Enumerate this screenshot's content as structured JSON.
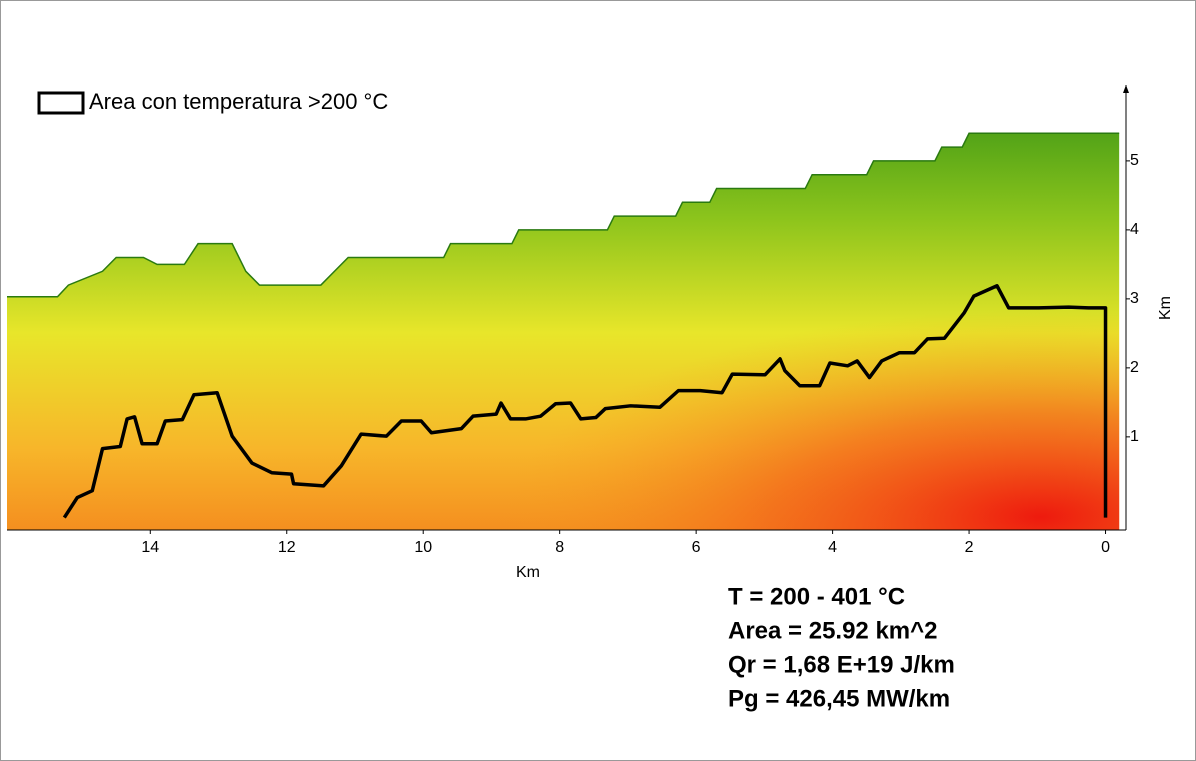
{
  "chart_data": {
    "type": "line",
    "legend_position": "upper left",
    "xlabel": "Km",
    "ylabel": "Km",
    "xlim": [
      16.1,
      -0.3
    ],
    "ylim": [
      -0.35,
      6.1
    ],
    "xticks": [
      14,
      12,
      10,
      8,
      6,
      4,
      2,
      0
    ],
    "yticks": [
      1,
      2,
      3,
      4,
      5
    ],
    "surface": {
      "x": [
        16.1,
        15.36,
        15.2,
        14.7,
        14.5,
        14.1,
        13.9,
        13.5,
        13.3,
        12.8,
        12.6,
        12.4,
        11.5,
        11.3,
        11.1,
        9.7,
        9.6,
        8.7,
        8.6,
        7.3,
        7.2,
        6.3,
        6.2,
        5.8,
        5.7,
        4.4,
        4.3,
        3.5,
        3.4,
        2.5,
        2.4,
        2.1,
        2.0,
        -0.2
      ],
      "values": [
        3.03,
        3.03,
        3.2,
        3.4,
        3.6,
        3.6,
        3.5,
        3.5,
        3.8,
        3.8,
        3.4,
        3.2,
        3.2,
        3.4,
        3.6,
        3.6,
        3.8,
        3.8,
        4.0,
        4.0,
        4.2,
        4.2,
        4.4,
        4.4,
        4.6,
        4.6,
        4.8,
        4.8,
        5.0,
        5.0,
        5.2,
        5.2,
        5.4,
        5.4
      ]
    },
    "series": [
      {
        "name": "Area con temperatura >200 °C",
        "color": "#000000",
        "x": [
          15.26,
          15.07,
          14.85,
          14.7,
          14.44,
          14.34,
          14.23,
          14.12,
          13.9,
          13.78,
          13.53,
          13.36,
          13.02,
          12.8,
          12.51,
          12.22,
          11.93,
          11.9,
          11.46,
          11.2,
          10.91,
          10.54,
          10.32,
          10.03,
          9.88,
          9.44,
          9.27,
          8.93,
          8.86,
          8.72,
          8.5,
          8.28,
          8.06,
          7.84,
          7.69,
          7.47,
          7.33,
          6.96,
          6.53,
          6.26,
          5.94,
          5.62,
          5.47,
          4.99,
          4.77,
          4.7,
          4.48,
          4.19,
          4.04,
          3.78,
          3.64,
          3.46,
          3.28,
          3.02,
          2.8,
          2.61,
          2.36,
          2.07,
          1.93,
          1.59,
          1.42,
          0.98,
          0.54,
          0.25,
          0,
          0
        ],
        "values": [
          -0.17,
          0.12,
          0.22,
          0.83,
          0.86,
          1.26,
          1.29,
          0.9,
          0.9,
          1.23,
          1.25,
          1.61,
          1.64,
          1.01,
          0.62,
          0.48,
          0.46,
          0.32,
          0.29,
          0.58,
          1.04,
          1.01,
          1.23,
          1.23,
          1.06,
          1.12,
          1.3,
          1.33,
          1.49,
          1.26,
          1.26,
          1.3,
          1.48,
          1.49,
          1.26,
          1.28,
          1.41,
          1.45,
          1.43,
          1.67,
          1.67,
          1.64,
          1.91,
          1.9,
          2.13,
          1.96,
          1.74,
          1.74,
          2.07,
          2.03,
          2.1,
          1.86,
          2.1,
          2.22,
          2.22,
          2.42,
          2.43,
          2.8,
          3.04,
          3.19,
          2.87,
          2.87,
          2.88,
          2.87,
          2.87,
          -0.17
        ]
      }
    ],
    "annotations": [
      "T = 200 - 401 °C",
      "Area = 25.92 km^2",
      "Qr = 1,68 E+19 J/km",
      "Pg = 426,45 MW/km"
    ]
  }
}
